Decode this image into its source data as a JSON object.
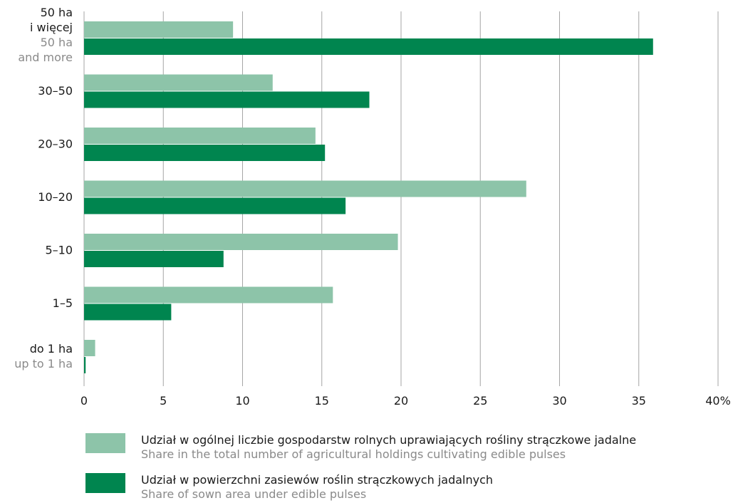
{
  "chart_data": {
    "type": "bar",
    "orientation": "horizontal",
    "categories": [
      {
        "label": [
          "50 ha",
          "i więcej"
        ],
        "sublabel": [
          "50 ha",
          "and  more"
        ]
      },
      {
        "label": [
          "30–50"
        ],
        "sublabel": []
      },
      {
        "label": [
          "20–30"
        ],
        "sublabel": []
      },
      {
        "label": [
          "10–20"
        ],
        "sublabel": []
      },
      {
        "label": [
          "5–10"
        ],
        "sublabel": []
      },
      {
        "label": [
          "1–5"
        ],
        "sublabel": []
      },
      {
        "label": [
          "do 1 ha"
        ],
        "sublabel": [
          "up to 1 ha"
        ]
      }
    ],
    "series": [
      {
        "name": "Udział w ogólnej liczbie gospodarstw rolnych uprawiających rośliny strączkowe jadalne",
        "name_en": "Share in the total number of agricultural holdings cultivating edible pulses",
        "color": "#8dc4a9",
        "values": [
          9.4,
          11.9,
          14.6,
          27.9,
          19.8,
          15.7,
          0.7
        ]
      },
      {
        "name": "Udział w powierzchni zasiewów roślin strączkowych jadalnych",
        "name_en": "Share of sown area under edible pulses",
        "color": "#00854f",
        "values": [
          35.9,
          18.0,
          15.2,
          16.5,
          8.8,
          5.5,
          0.1
        ]
      }
    ],
    "xlim": [
      0,
      40
    ],
    "xticks": [
      "0",
      "5",
      "10",
      "15",
      "20",
      "25",
      "30",
      "35",
      "40%"
    ],
    "grid": true,
    "gridColor": "#a6a6a6",
    "legend_position": "bottom"
  }
}
